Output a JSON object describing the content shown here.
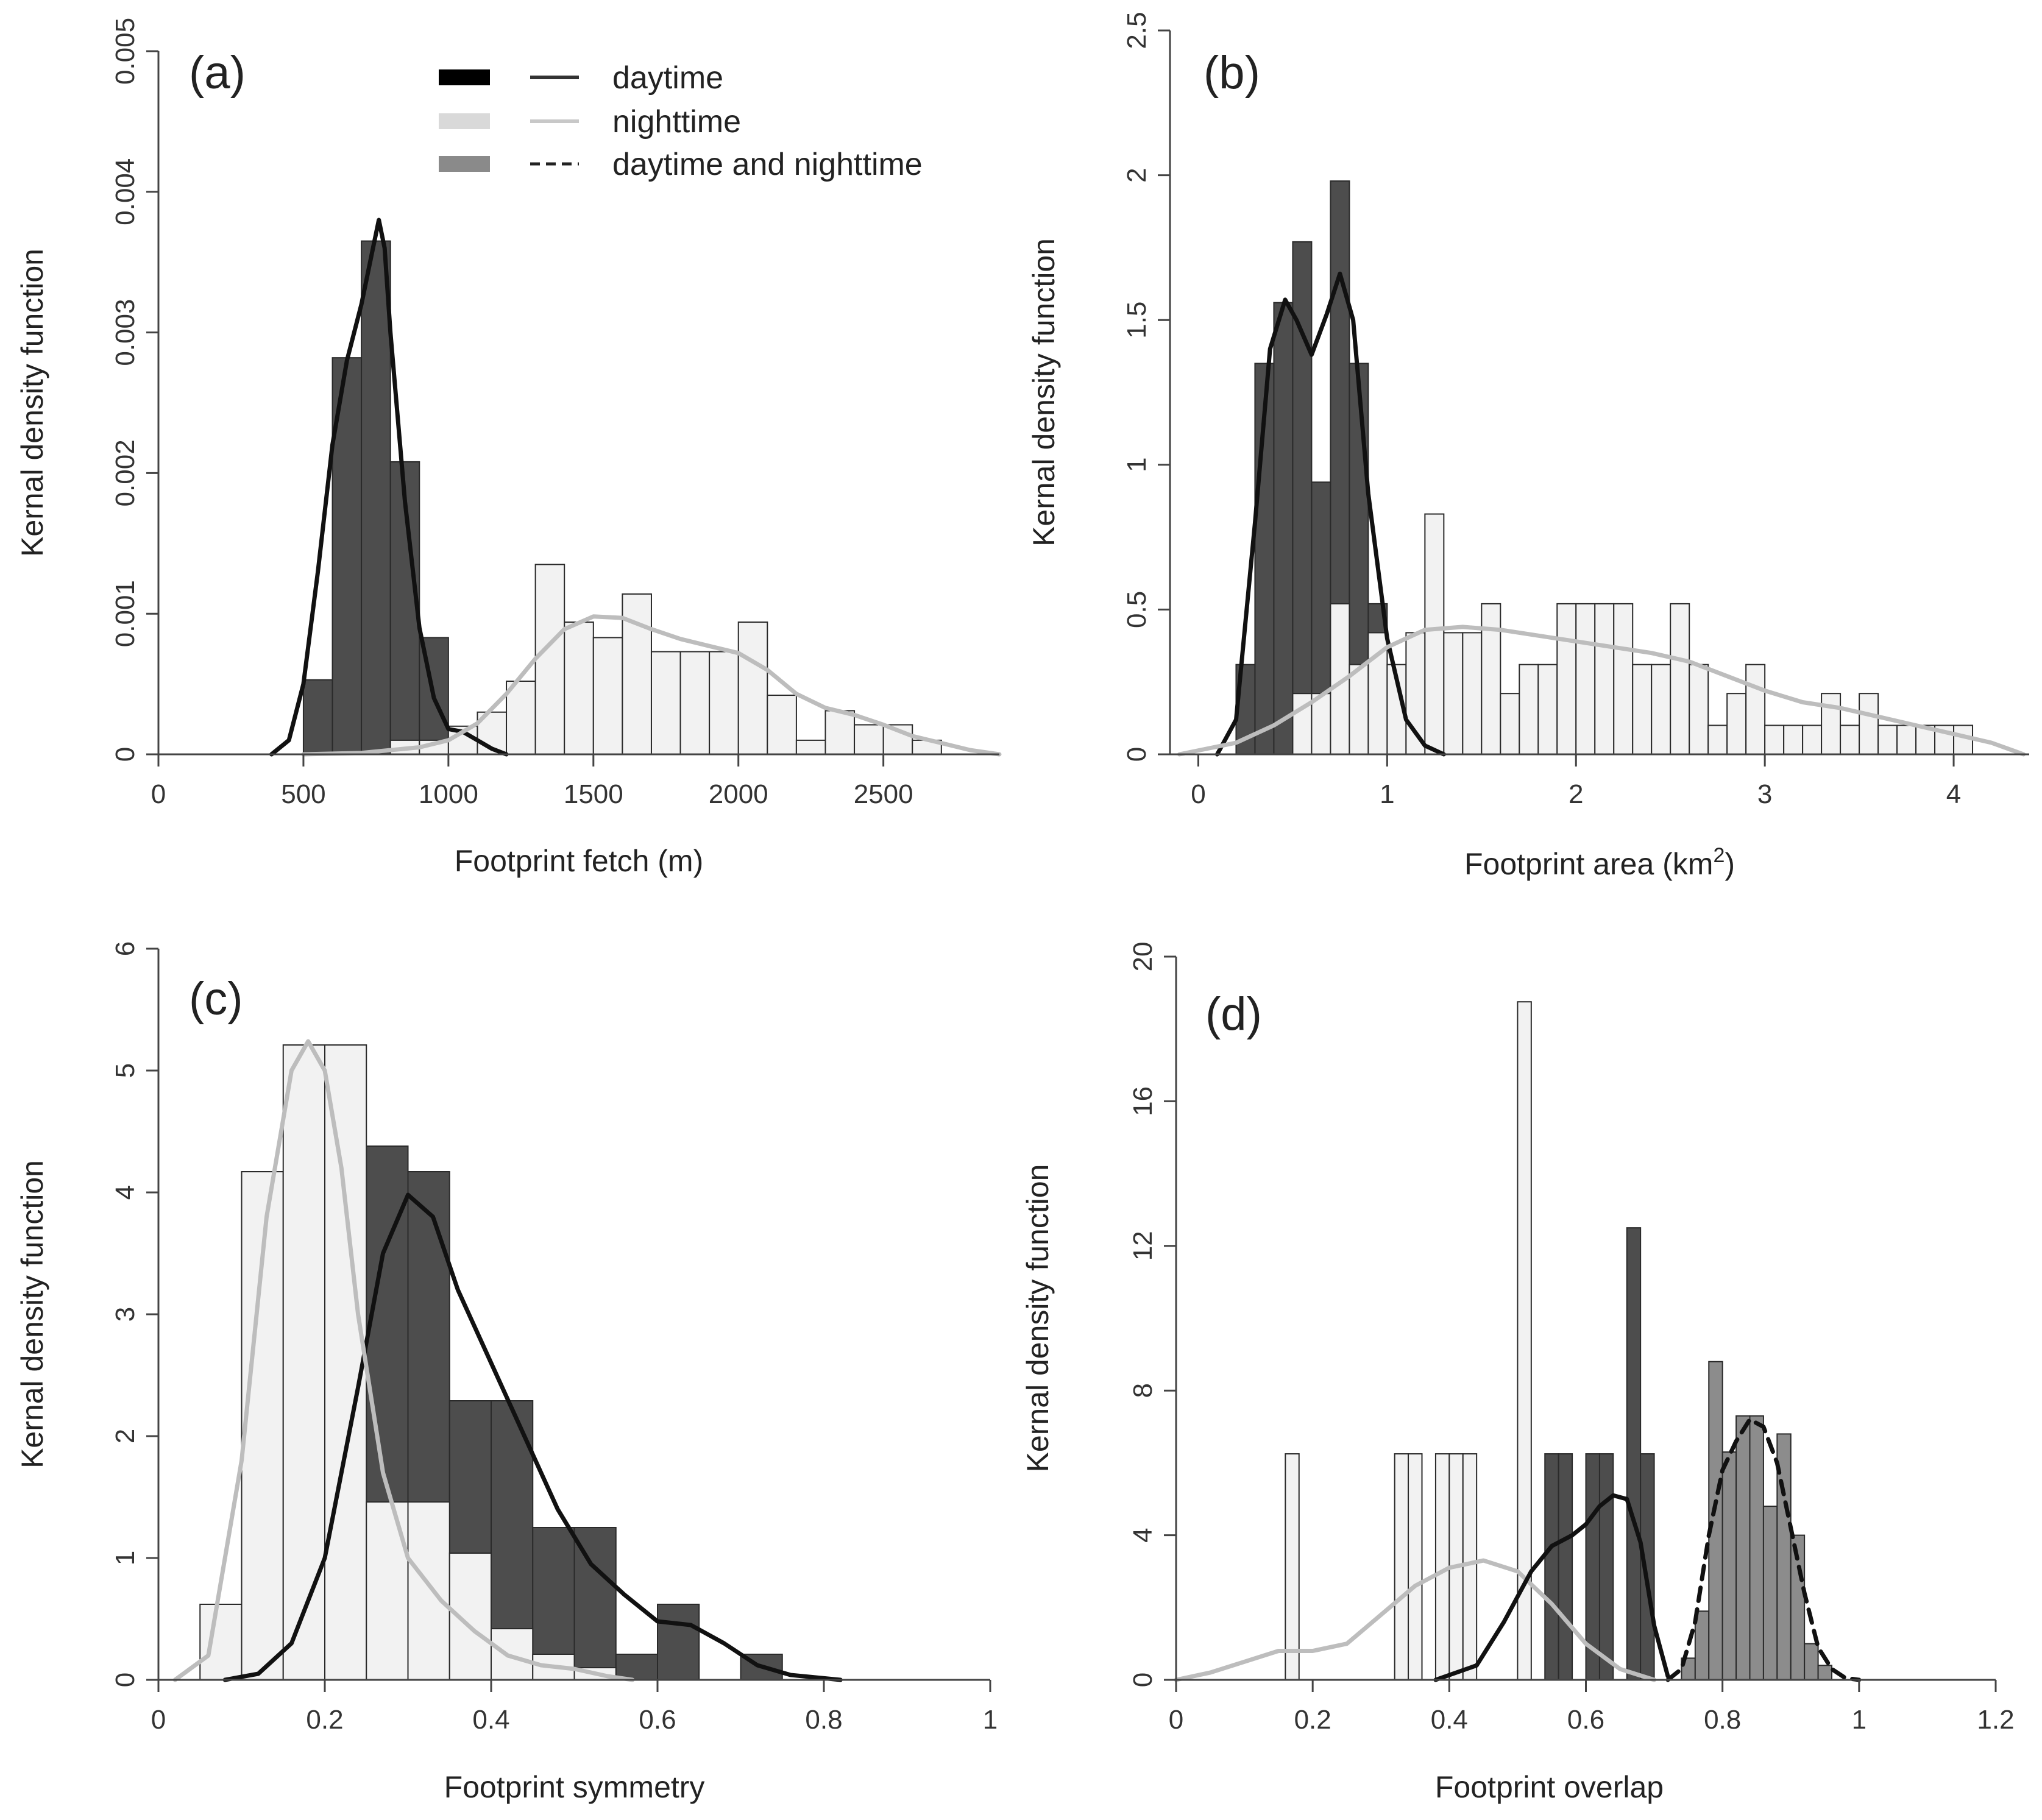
{
  "colors": {
    "day": "#4d4d4d",
    "night": "#f2f2f2",
    "both": "#8c8c8c",
    "day_line": "#111111",
    "night_line": "#bdbdbd",
    "both_line": "#111111"
  },
  "legend": {
    "entries": [
      {
        "label": "daytime",
        "fill": "day",
        "line": "solid-dark"
      },
      {
        "label": "nighttime",
        "fill": "night",
        "line": "solid-light"
      },
      {
        "label": "daytime and nighttime",
        "fill": "both",
        "line": "dashed-dark"
      }
    ]
  },
  "chart_data": [
    {
      "panel": "(a)",
      "type": "bar",
      "xlabel": "Footprint fetch (m)",
      "ylabel": "Kernal density function",
      "xlim": [
        0,
        2900
      ],
      "ylim": [
        0,
        0.005
      ],
      "xticks": [
        0,
        500,
        1000,
        1500,
        2000,
        2500
      ],
      "xtick_labels": [
        "0",
        "500",
        "1000",
        "1500",
        "2000",
        "2500"
      ],
      "yticks": [
        0,
        0.001,
        0.002,
        0.003,
        0.004,
        0.005
      ],
      "ytick_labels": [
        "0",
        "0.001",
        "0.002",
        "0.003",
        "0.004",
        "0.005"
      ],
      "series": [
        {
          "name": "daytime",
          "bin_width": 100,
          "bin_starts": [
            500,
            600,
            700,
            800,
            900
          ],
          "values": [
            0.00053,
            0.00282,
            0.00365,
            0.00208,
            0.00083
          ]
        },
        {
          "name": "nighttime",
          "bin_width": 100,
          "bin_starts": [
            800,
            900,
            1000,
            1100,
            1200,
            1300,
            1400,
            1500,
            1600,
            1700,
            1800,
            1900,
            2000,
            2100,
            2200,
            2300,
            2400,
            2500,
            2600
          ],
          "values": [
            0.0001,
            0.0001,
            0.0002,
            0.0003,
            0.00052,
            0.00135,
            0.00094,
            0.00083,
            0.00114,
            0.00073,
            0.00073,
            0.00073,
            0.00094,
            0.00042,
            0.0001,
            0.00031,
            0.00021,
            0.00021,
            0.0001
          ]
        }
      ],
      "curves": [
        {
          "name": "daytime",
          "x": [
            390,
            450,
            500,
            550,
            600,
            650,
            700,
            740,
            760,
            780,
            800,
            850,
            900,
            950,
            1000,
            1050,
            1100,
            1150,
            1200
          ],
          "y": [
            0,
            0.0001,
            0.0005,
            0.0013,
            0.0022,
            0.0028,
            0.0032,
            0.0036,
            0.0038,
            0.0036,
            0.003,
            0.0018,
            0.0009,
            0.0004,
            0.00018,
            0.00016,
            0.0001,
            4e-05,
            0
          ]
        },
        {
          "name": "nighttime",
          "x": [
            500,
            700,
            900,
            1000,
            1100,
            1200,
            1300,
            1400,
            1500,
            1600,
            1700,
            1800,
            1900,
            2000,
            2100,
            2200,
            2300,
            2400,
            2500,
            2600,
            2700,
            2800,
            2900
          ],
          "y": [
            0,
            1e-05,
            5e-05,
            0.0001,
            0.00022,
            0.00043,
            0.00068,
            0.00089,
            0.00098,
            0.00097,
            0.00089,
            0.00082,
            0.00077,
            0.00072,
            0.0006,
            0.00043,
            0.00033,
            0.00028,
            0.00021,
            0.00013,
            8e-05,
            3e-05,
            0
          ]
        }
      ]
    },
    {
      "panel": "(b)",
      "type": "bar",
      "xlabel": "Footprint area (km",
      "xlabel_sup": "2",
      "xlabel_end": ")",
      "ylabel": "Kernal density function",
      "xlim": [
        -0.15,
        4.4
      ],
      "ylim": [
        0,
        2.5
      ],
      "xticks": [
        0,
        1,
        2,
        3,
        4
      ],
      "xtick_labels": [
        "0",
        "1",
        "2",
        "3",
        "4"
      ],
      "yticks": [
        0,
        0.5,
        1,
        1.5,
        2,
        2.5
      ],
      "ytick_labels": [
        "0",
        "0.5",
        "1",
        "1.5",
        "2",
        "2.5"
      ],
      "series": [
        {
          "name": "daytime",
          "bin_width": 0.1,
          "bin_starts": [
            0.2,
            0.3,
            0.4,
            0.5,
            0.6,
            0.7,
            0.8,
            0.9
          ],
          "values": [
            0.31,
            1.35,
            1.56,
            1.77,
            0.94,
            1.98,
            1.35,
            0.52
          ]
        },
        {
          "name": "nighttime",
          "bin_width": 0.1,
          "bin_starts": [
            0.5,
            0.6,
            0.7,
            0.8,
            0.9,
            1.0,
            1.1,
            1.2,
            1.3,
            1.4,
            1.5,
            1.6,
            1.7,
            1.8,
            1.9,
            2.0,
            2.1,
            2.2,
            2.3,
            2.4,
            2.5,
            2.6,
            2.7,
            2.8,
            2.9,
            3.0,
            3.1,
            3.2,
            3.3,
            3.4,
            3.5,
            3.6,
            3.7,
            3.8,
            3.9,
            4.0
          ],
          "values": [
            0.21,
            0.21,
            0.52,
            0.31,
            0.42,
            0.31,
            0.42,
            0.83,
            0.42,
            0.42,
            0.52,
            0.21,
            0.31,
            0.31,
            0.52,
            0.52,
            0.52,
            0.52,
            0.31,
            0.31,
            0.52,
            0.31,
            0.1,
            0.21,
            0.31,
            0.1,
            0.1,
            0.1,
            0.21,
            0.1,
            0.21,
            0.1,
            0.1,
            0.1,
            0.1,
            0.1
          ]
        }
      ],
      "curves": [
        {
          "name": "daytime",
          "x": [
            0.1,
            0.2,
            0.3,
            0.38,
            0.46,
            0.52,
            0.6,
            0.68,
            0.75,
            0.82,
            0.9,
            1.0,
            1.1,
            1.2,
            1.3
          ],
          "y": [
            0,
            0.12,
            0.8,
            1.4,
            1.57,
            1.5,
            1.38,
            1.52,
            1.66,
            1.5,
            0.9,
            0.4,
            0.12,
            0.03,
            0
          ]
        },
        {
          "name": "nighttime",
          "x": [
            -0.1,
            0.2,
            0.4,
            0.6,
            0.8,
            1.0,
            1.2,
            1.4,
            1.6,
            1.8,
            2.0,
            2.2,
            2.4,
            2.6,
            2.8,
            3.0,
            3.2,
            3.4,
            3.6,
            3.8,
            4.0,
            4.2,
            4.37
          ],
          "y": [
            0,
            0.04,
            0.1,
            0.18,
            0.27,
            0.37,
            0.43,
            0.44,
            0.43,
            0.41,
            0.39,
            0.37,
            0.35,
            0.32,
            0.27,
            0.22,
            0.18,
            0.16,
            0.13,
            0.1,
            0.07,
            0.04,
            0
          ]
        }
      ]
    },
    {
      "panel": "(c)",
      "type": "bar",
      "xlabel": "Footprint symmetry",
      "ylabel": "Kernal density function",
      "xlim": [
        0,
        1
      ],
      "ylim": [
        0,
        6
      ],
      "xticks": [
        0,
        0.2,
        0.4,
        0.6,
        0.8,
        1
      ],
      "xtick_labels": [
        "0",
        "0.2",
        "0.4",
        "0.6",
        "0.8",
        "1"
      ],
      "yticks": [
        0,
        1,
        2,
        3,
        4,
        5,
        6
      ],
      "ytick_labels": [
        "0",
        "1",
        "2",
        "3",
        "4",
        "5",
        "6"
      ],
      "series": [
        {
          "name": "daytime",
          "bin_width": 0.05,
          "bin_starts": [
            0.25,
            0.3,
            0.35,
            0.4,
            0.45,
            0.5,
            0.55,
            0.6,
            0.65,
            0.7
          ],
          "values": [
            4.38,
            4.17,
            2.29,
            2.29,
            1.25,
            1.25,
            0.21,
            0.62,
            0,
            0.21
          ]
        },
        {
          "name": "nighttime",
          "bin_width": 0.05,
          "bin_starts": [
            0.05,
            0.1,
            0.15,
            0.2,
            0.25,
            0.3,
            0.35,
            0.4,
            0.45,
            0.5
          ],
          "values": [
            0.62,
            4.17,
            5.21,
            5.21,
            1.46,
            1.46,
            1.04,
            0.42,
            0.21,
            0.1
          ]
        }
      ],
      "curves": [
        {
          "name": "daytime",
          "x": [
            0.08,
            0.12,
            0.16,
            0.2,
            0.24,
            0.27,
            0.3,
            0.33,
            0.36,
            0.4,
            0.44,
            0.48,
            0.52,
            0.56,
            0.6,
            0.64,
            0.68,
            0.72,
            0.76,
            0.82
          ],
          "y": [
            0,
            0.05,
            0.3,
            1.0,
            2.4,
            3.5,
            3.98,
            3.8,
            3.2,
            2.6,
            2.0,
            1.4,
            0.95,
            0.7,
            0.48,
            0.45,
            0.3,
            0.12,
            0.04,
            0
          ]
        },
        {
          "name": "nighttime",
          "x": [
            0.02,
            0.06,
            0.1,
            0.13,
            0.16,
            0.18,
            0.2,
            0.22,
            0.24,
            0.27,
            0.3,
            0.34,
            0.38,
            0.42,
            0.46,
            0.5,
            0.54,
            0.57
          ],
          "y": [
            0,
            0.2,
            1.8,
            3.8,
            5.0,
            5.24,
            5.0,
            4.2,
            3.0,
            1.7,
            1.0,
            0.65,
            0.4,
            0.2,
            0.12,
            0.09,
            0.03,
            0
          ]
        }
      ]
    },
    {
      "panel": "(d)",
      "type": "bar",
      "xlabel": "Footprint overlap",
      "ylabel": "Kernal density function",
      "xlim": [
        0,
        1.2
      ],
      "ylim": [
        0,
        20
      ],
      "xticks": [
        0,
        0.2,
        0.4,
        0.6,
        0.8,
        1,
        1.2
      ],
      "xtick_labels": [
        "0",
        "0.2",
        "0.4",
        "0.6",
        "0.8",
        "1",
        "1.2"
      ],
      "yticks": [
        0,
        4,
        8,
        12,
        16,
        20
      ],
      "ytick_labels": [
        "0",
        "4",
        "8",
        "12",
        "16",
        "20"
      ],
      "series": [
        {
          "name": "nighttime",
          "bin_width": 0.02,
          "bin_starts": [
            0.16,
            0.32,
            0.34,
            0.36,
            0.38,
            0.4,
            0.42,
            0.5
          ],
          "values": [
            6.25,
            6.25,
            6.25,
            0,
            6.25,
            6.25,
            6.25,
            18.75
          ]
        },
        {
          "name": "daytime",
          "bin_width": 0.02,
          "bin_starts": [
            0.54,
            0.56,
            0.58,
            0.6,
            0.62,
            0.64,
            0.66,
            0.68
          ],
          "values": [
            6.25,
            6.25,
            0,
            6.25,
            6.25,
            0,
            12.5,
            6.25
          ]
        },
        {
          "name": "daytime and nighttime",
          "bin_width": 0.02,
          "bin_starts": [
            0.74,
            0.76,
            0.78,
            0.8,
            0.82,
            0.84,
            0.86,
            0.88,
            0.9,
            0.92,
            0.94
          ],
          "values": [
            0.6,
            1.9,
            8.8,
            6.3,
            7.3,
            7.3,
            4.8,
            6.8,
            4.0,
            1.0,
            0.4
          ]
        }
      ],
      "curves": [
        {
          "name": "nighttime",
          "x": [
            0.0,
            0.05,
            0.1,
            0.15,
            0.2,
            0.25,
            0.3,
            0.35,
            0.4,
            0.45,
            0.5,
            0.55,
            0.6,
            0.65,
            0.7
          ],
          "y": [
            0,
            0.2,
            0.5,
            0.8,
            0.8,
            1.0,
            1.8,
            2.6,
            3.1,
            3.3,
            3.0,
            2.1,
            1.0,
            0.3,
            0
          ]
        },
        {
          "name": "daytime",
          "x": [
            0.38,
            0.44,
            0.48,
            0.52,
            0.55,
            0.58,
            0.6,
            0.62,
            0.64,
            0.66,
            0.68,
            0.7,
            0.72
          ],
          "y": [
            0,
            0.4,
            1.6,
            3.0,
            3.7,
            4.0,
            4.3,
            4.8,
            5.1,
            5.0,
            3.8,
            1.5,
            0.1
          ]
        },
        {
          "name": "daytime and nighttime",
          "dashed": true,
          "x": [
            0.72,
            0.74,
            0.76,
            0.78,
            0.8,
            0.82,
            0.84,
            0.86,
            0.88,
            0.9,
            0.92,
            0.94,
            0.96,
            0.98,
            1.0
          ],
          "y": [
            0,
            0.3,
            1.6,
            4.0,
            5.8,
            6.6,
            7.2,
            7.0,
            6.0,
            4.2,
            2.4,
            0.9,
            0.3,
            0.05,
            0
          ]
        }
      ]
    }
  ]
}
